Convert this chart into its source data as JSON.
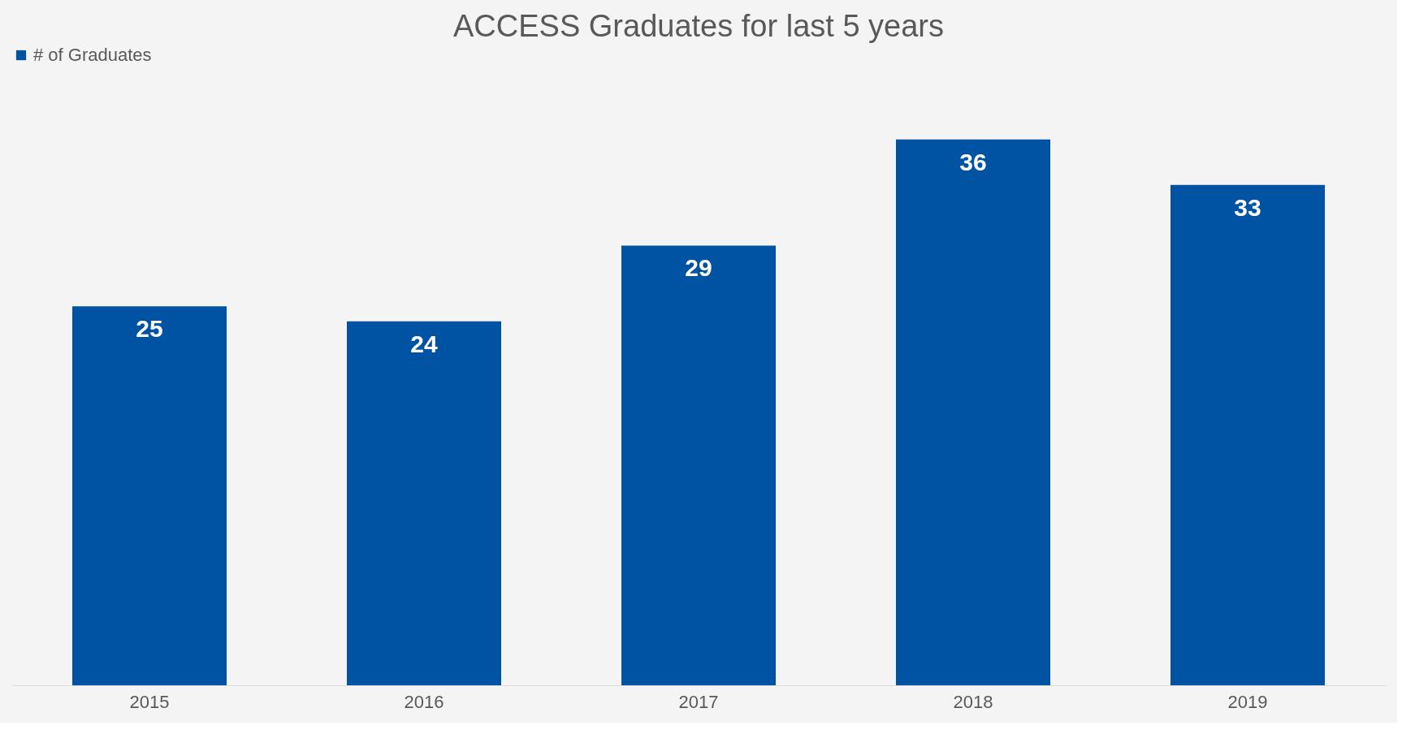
{
  "chart_data": {
    "type": "bar",
    "title": "ACCESS Graduates for last 5 years",
    "categories": [
      "2015",
      "2016",
      "2017",
      "2018",
      "2019"
    ],
    "series": [
      {
        "name": "# of Graduates",
        "color": "#0052a3",
        "values": [
          25,
          24,
          29,
          36,
          33
        ]
      }
    ],
    "data_labels": true,
    "legend": "top",
    "grid": false
  }
}
